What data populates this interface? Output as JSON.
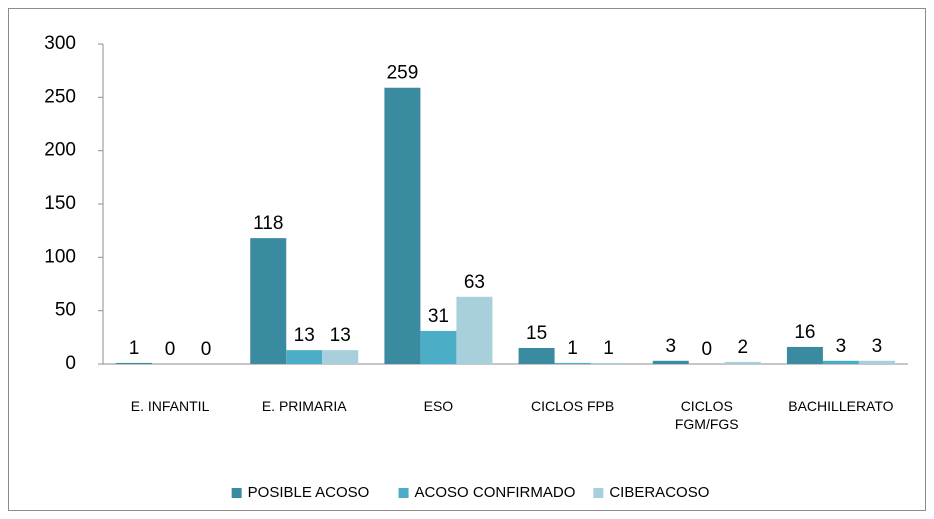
{
  "chart_data": {
    "type": "bar",
    "categories": [
      "E. INFANTIL",
      "E. PRIMARIA",
      "ESO",
      "CICLOS FPB",
      "CICLOS FGM/FGS",
      "BACHILLERATO"
    ],
    "series": [
      {
        "name": "POSIBLE ACOSO",
        "color": "#3a8aa0",
        "values": [
          1,
          118,
          259,
          15,
          3,
          16
        ]
      },
      {
        "name": "ACOSO CONFIRMADO",
        "color": "#4badc6",
        "values": [
          0,
          13,
          31,
          1,
          0,
          3
        ]
      },
      {
        "name": "CIBERACOSO",
        "color": "#a8d0dc",
        "values": [
          0,
          13,
          63,
          1,
          2,
          3
        ]
      }
    ],
    "ylim": [
      0,
      300
    ],
    "yticks": [
      0,
      50,
      100,
      150,
      200,
      250,
      300
    ],
    "grid": false,
    "legend": "bottom"
  }
}
